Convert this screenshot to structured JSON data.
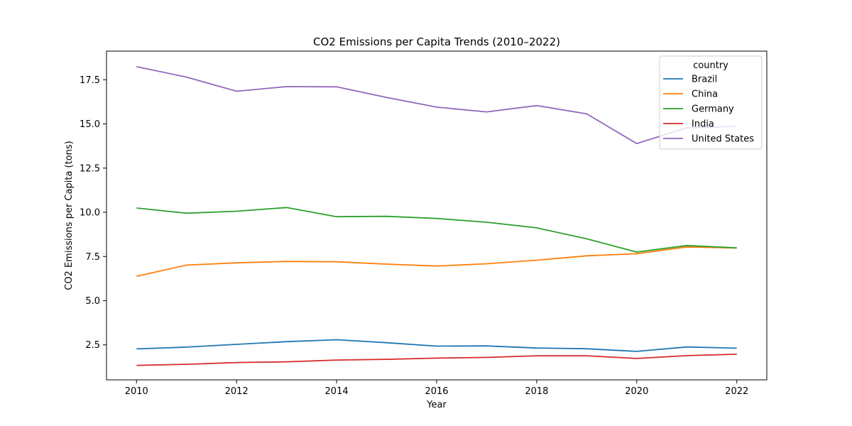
{
  "chart_data": {
    "type": "line",
    "title": "CO2 Emissions per Capita Trends (2010–2022)",
    "xlabel": "Year",
    "ylabel": "CO2 Emissions per Capita (tons)",
    "x": [
      2010,
      2011,
      2012,
      2013,
      2014,
      2015,
      2016,
      2017,
      2018,
      2019,
      2020,
      2021,
      2022
    ],
    "xlim": [
      2009.4,
      2022.6
    ],
    "ylim": [
      0.52,
      19.12
    ],
    "x_ticks": [
      "2010",
      "2012",
      "2014",
      "2016",
      "2018",
      "2020",
      "2022"
    ],
    "y_ticks": [
      "2.5",
      "5.0",
      "7.5",
      "10.0",
      "12.5",
      "15.0",
      "17.5"
    ],
    "grid": false,
    "legend": {
      "title": "country",
      "placement": "top-right"
    },
    "series": [
      {
        "name": "Brazil",
        "color": "#1f77b4",
        "values": [
          2.27,
          2.37,
          2.53,
          2.68,
          2.79,
          2.62,
          2.43,
          2.44,
          2.32,
          2.28,
          2.13,
          2.38,
          2.31
        ]
      },
      {
        "name": "China",
        "color": "#ff7f0e",
        "values": [
          6.38,
          7.01,
          7.14,
          7.22,
          7.2,
          7.07,
          6.96,
          7.09,
          7.29,
          7.54,
          7.66,
          8.04,
          7.98
        ]
      },
      {
        "name": "Germany",
        "color": "#2ca02c",
        "values": [
          10.24,
          9.95,
          10.06,
          10.27,
          9.75,
          9.77,
          9.65,
          9.44,
          9.12,
          8.5,
          7.75,
          8.12,
          7.99
        ]
      },
      {
        "name": "India",
        "color": "#d62728",
        "values": [
          1.34,
          1.4,
          1.5,
          1.54,
          1.64,
          1.68,
          1.75,
          1.79,
          1.88,
          1.88,
          1.73,
          1.89,
          1.97
        ]
      },
      {
        "name": "United States",
        "color": "#9467bd",
        "values": [
          18.24,
          17.65,
          16.85,
          17.11,
          17.1,
          16.5,
          15.95,
          15.68,
          16.04,
          15.57,
          13.89,
          14.78,
          14.86
        ]
      }
    ]
  }
}
